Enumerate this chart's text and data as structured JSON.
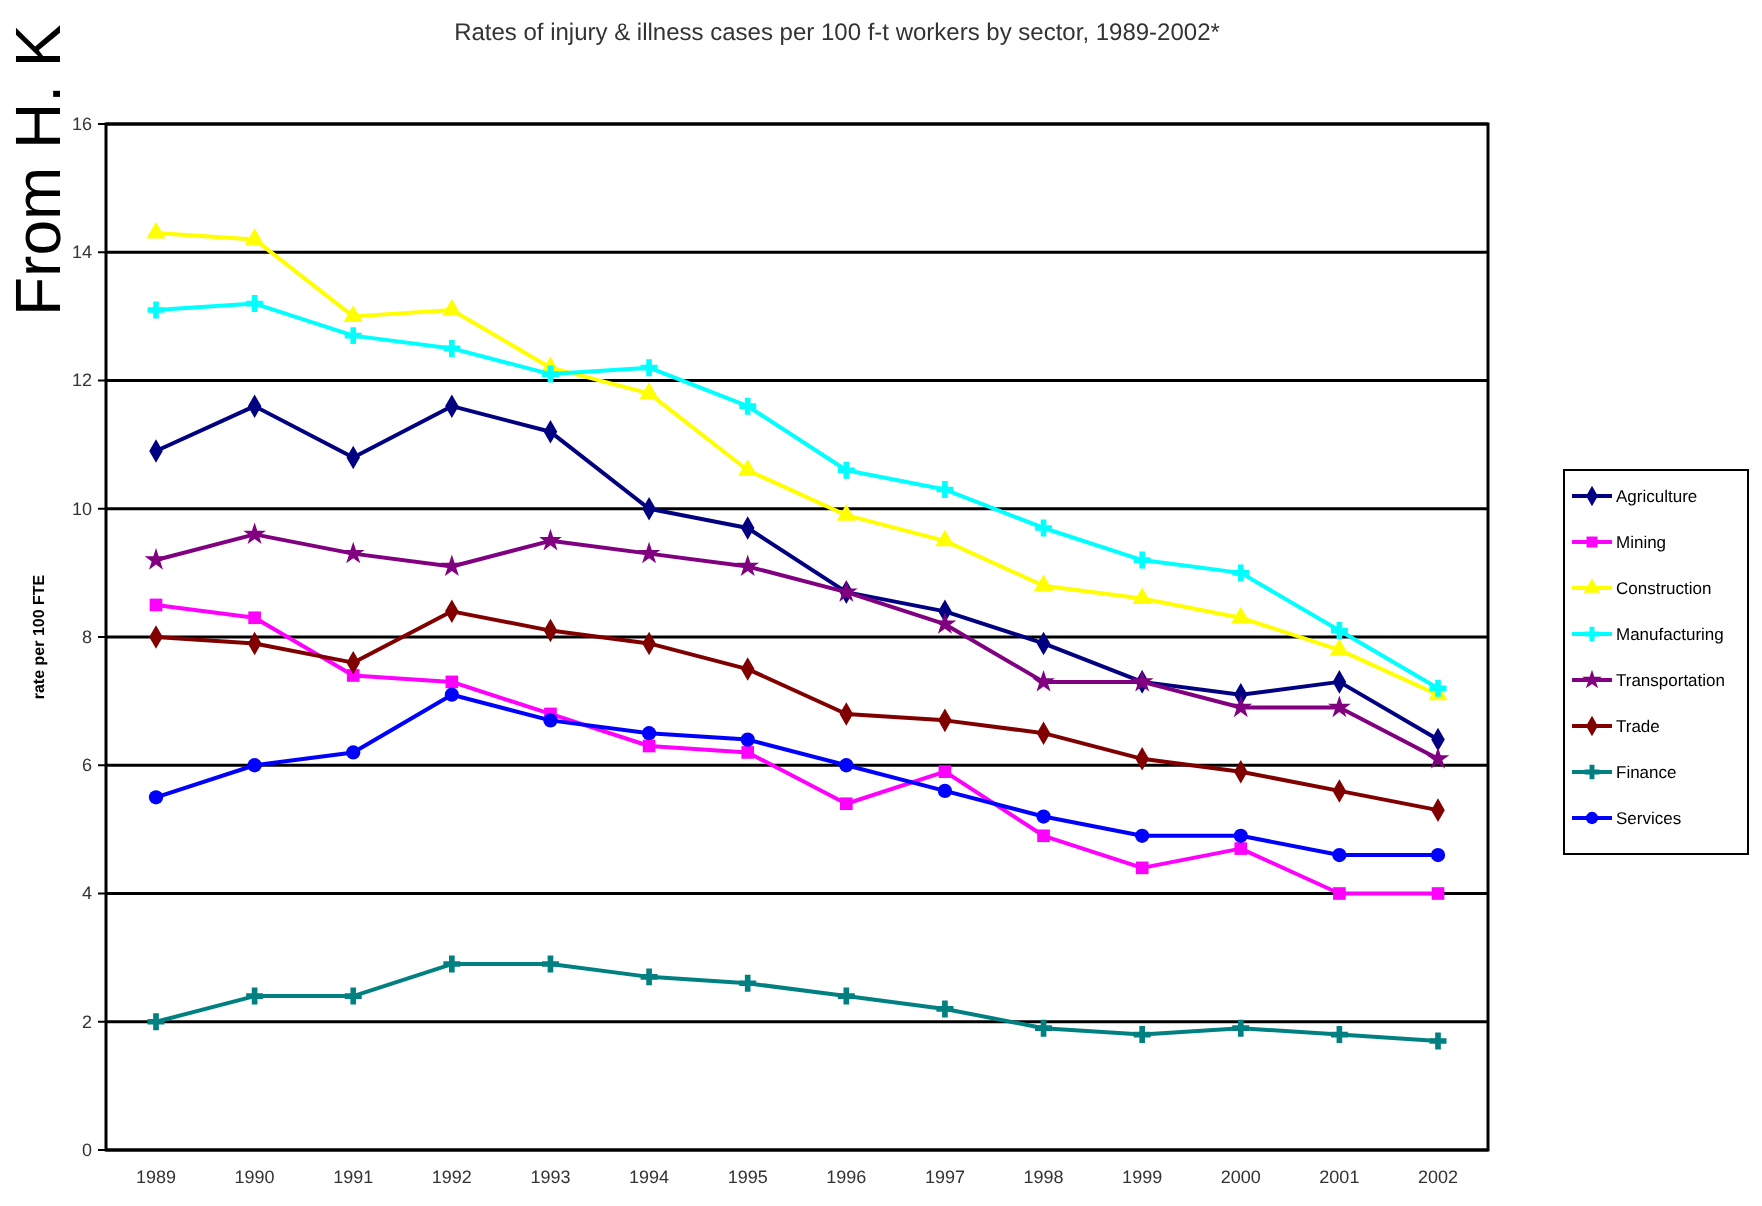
{
  "chart_data": {
    "type": "line",
    "title": "Rates of injury & illness cases per 100 f-t workers by sector, 1989-2002*",
    "ylabel": "rate per 100 FTE",
    "annotations": [
      "From H. K"
    ],
    "categories": [
      "1989",
      "1990",
      "1991",
      "1992",
      "1993",
      "1994",
      "1995",
      "1996",
      "1997",
      "1998",
      "1999",
      "2000",
      "2001",
      "2002"
    ],
    "ylim": [
      0,
      16
    ],
    "yticks": [
      0,
      2,
      4,
      6,
      8,
      10,
      12,
      14,
      16
    ],
    "grid": "y",
    "legend": "right",
    "series": [
      {
        "name": "Agriculture",
        "color": "#000080",
        "marker": "diamond",
        "values": [
          10.9,
          11.6,
          10.8,
          11.6,
          11.2,
          10.0,
          9.7,
          8.7,
          8.4,
          7.9,
          7.3,
          7.1,
          7.3,
          6.4
        ]
      },
      {
        "name": "Mining",
        "color": "#ff00ff",
        "marker": "square",
        "values": [
          8.5,
          8.3,
          7.4,
          7.3,
          6.8,
          6.3,
          6.2,
          5.4,
          5.9,
          4.9,
          4.4,
          4.7,
          4.0,
          4.0
        ]
      },
      {
        "name": "Construction",
        "color": "#ffff00",
        "marker": "triangle",
        "values": [
          14.3,
          14.2,
          13.0,
          13.1,
          12.2,
          11.8,
          10.6,
          9.9,
          9.5,
          8.8,
          8.6,
          8.3,
          7.8,
          7.1
        ]
      },
      {
        "name": "Manufacturing",
        "color": "#00ffff",
        "marker": "cross",
        "values": [
          13.1,
          13.2,
          12.7,
          12.5,
          12.1,
          12.2,
          11.6,
          10.6,
          10.3,
          9.7,
          9.2,
          9.0,
          8.1,
          7.2
        ]
      },
      {
        "name": "Transportation",
        "color": "#800080",
        "marker": "star",
        "values": [
          9.2,
          9.6,
          9.3,
          9.1,
          9.5,
          9.3,
          9.1,
          8.7,
          8.2,
          7.3,
          7.3,
          6.9,
          6.9,
          6.1
        ]
      },
      {
        "name": "Trade",
        "color": "#800000",
        "marker": "diamond",
        "values": [
          8.0,
          7.9,
          7.6,
          8.4,
          8.1,
          7.9,
          7.5,
          6.8,
          6.7,
          6.5,
          6.1,
          5.9,
          5.6,
          5.3
        ]
      },
      {
        "name": "Finance",
        "color": "#008080",
        "marker": "cross",
        "values": [
          2.0,
          2.4,
          2.4,
          2.9,
          2.9,
          2.7,
          2.6,
          2.4,
          2.2,
          1.9,
          1.8,
          1.9,
          1.8,
          1.7
        ]
      },
      {
        "name": "Services",
        "color": "#0000ff",
        "marker": "circle",
        "values": [
          5.5,
          6.0,
          6.2,
          7.1,
          6.7,
          6.5,
          6.4,
          6.0,
          5.6,
          5.2,
          4.9,
          4.9,
          4.6,
          4.6
        ]
      }
    ]
  }
}
